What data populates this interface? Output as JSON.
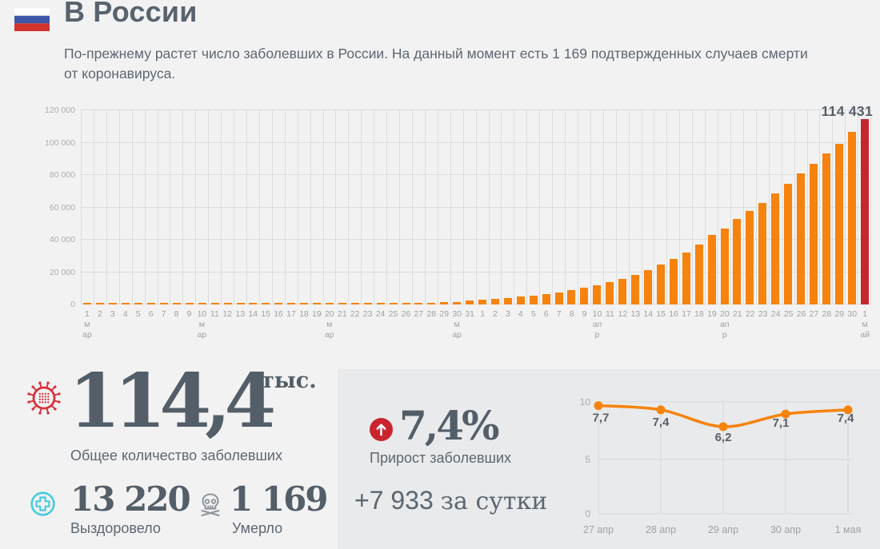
{
  "colors": {
    "accent_orange": "#f6830d",
    "accent_red": "#c4272e",
    "badge_red": "#c9252f",
    "cyan": "#45cbdf",
    "slate_text": "#566069",
    "panel_bg": "#e9eaeb",
    "page_bg": "#f2f2f3"
  },
  "header": {
    "title": "В России",
    "subtitle": "По-прежнему растет число заболевших в России. На данный момент есть 1 169 подтвержденных случаев смерти от коронавируса.",
    "flag_stripes": [
      "#ffffff",
      "#3d58a8",
      "#d0342c"
    ]
  },
  "chart_data": [
    {
      "type": "bar",
      "categories": [
        "1",
        "2",
        "3",
        "4",
        "5",
        "6",
        "7",
        "8",
        "9",
        "10",
        "11",
        "12",
        "13",
        "14",
        "15",
        "16",
        "17",
        "18",
        "19",
        "20",
        "21",
        "22",
        "23",
        "24",
        "25",
        "26",
        "27",
        "28",
        "29",
        "30",
        "31",
        "1",
        "2",
        "3",
        "4",
        "5",
        "6",
        "7",
        "8",
        "9",
        "10",
        "11",
        "12",
        "13",
        "14",
        "15",
        "16",
        "17",
        "18",
        "19",
        "20",
        "21",
        "22",
        "23",
        "24",
        "25",
        "26",
        "27",
        "28",
        "29",
        "30",
        "1"
      ],
      "month_labels": {
        "0": "мар",
        "9": "мар",
        "19": "мар",
        "29": "мар",
        "40": "апр",
        "50": "апр",
        "61": "май"
      },
      "values": [
        2,
        3,
        3,
        3,
        4,
        13,
        13,
        17,
        17,
        20,
        20,
        28,
        34,
        45,
        59,
        63,
        93,
        114,
        147,
        199,
        253,
        306,
        367,
        438,
        495,
        658,
        840,
        1036,
        1264,
        1534,
        2337,
        2777,
        3548,
        4149,
        4731,
        5389,
        6343,
        7497,
        8672,
        10131,
        11917,
        13584,
        15770,
        18328,
        21102,
        24490,
        27938,
        32008,
        36793,
        42853,
        47121,
        52763,
        57999,
        62773,
        68622,
        74588,
        80949,
        87147,
        93558,
        99399,
        106498,
        114431
      ],
      "ylim": [
        0,
        120000
      ],
      "yticks": [
        "0",
        "20 000",
        "40 000",
        "60 000",
        "80 000",
        "100 000",
        "120 000"
      ],
      "bar_color": "#f6830d",
      "last_bar_color": "#c4272e",
      "annotation": "114 431",
      "grid": true,
      "legend": "none"
    },
    {
      "type": "line",
      "categories": [
        "27 апр",
        "28 апр",
        "29 апр",
        "30 апр",
        "1 мая"
      ],
      "values": [
        7.7,
        7.4,
        6.2,
        7.1,
        7.4
      ],
      "point_labels": [
        "7,7",
        "7,4",
        "6,2",
        "7,1",
        "7,4"
      ],
      "ylim": [
        0,
        10
      ],
      "yticks": [
        "10",
        "5",
        "0"
      ],
      "line_color": "#f6830d",
      "grid": true,
      "legend": "none"
    }
  ],
  "stats": {
    "total": {
      "icon": "virus-icon",
      "value": "114,4",
      "unit": "тыс.",
      "label": "Общее количество заболевших"
    },
    "recovered": {
      "icon": "medical-cross-icon",
      "value": "13 220",
      "label": "Выздоровело"
    },
    "deaths": {
      "icon": "skull-icon",
      "value": "1 169",
      "label": "Умерло"
    },
    "growth": {
      "icon": "arrow-up-icon",
      "value": "7,4%",
      "label": "Прирост заболевших",
      "daily_value": "+7 933",
      "daily_label": "за сутки"
    }
  }
}
